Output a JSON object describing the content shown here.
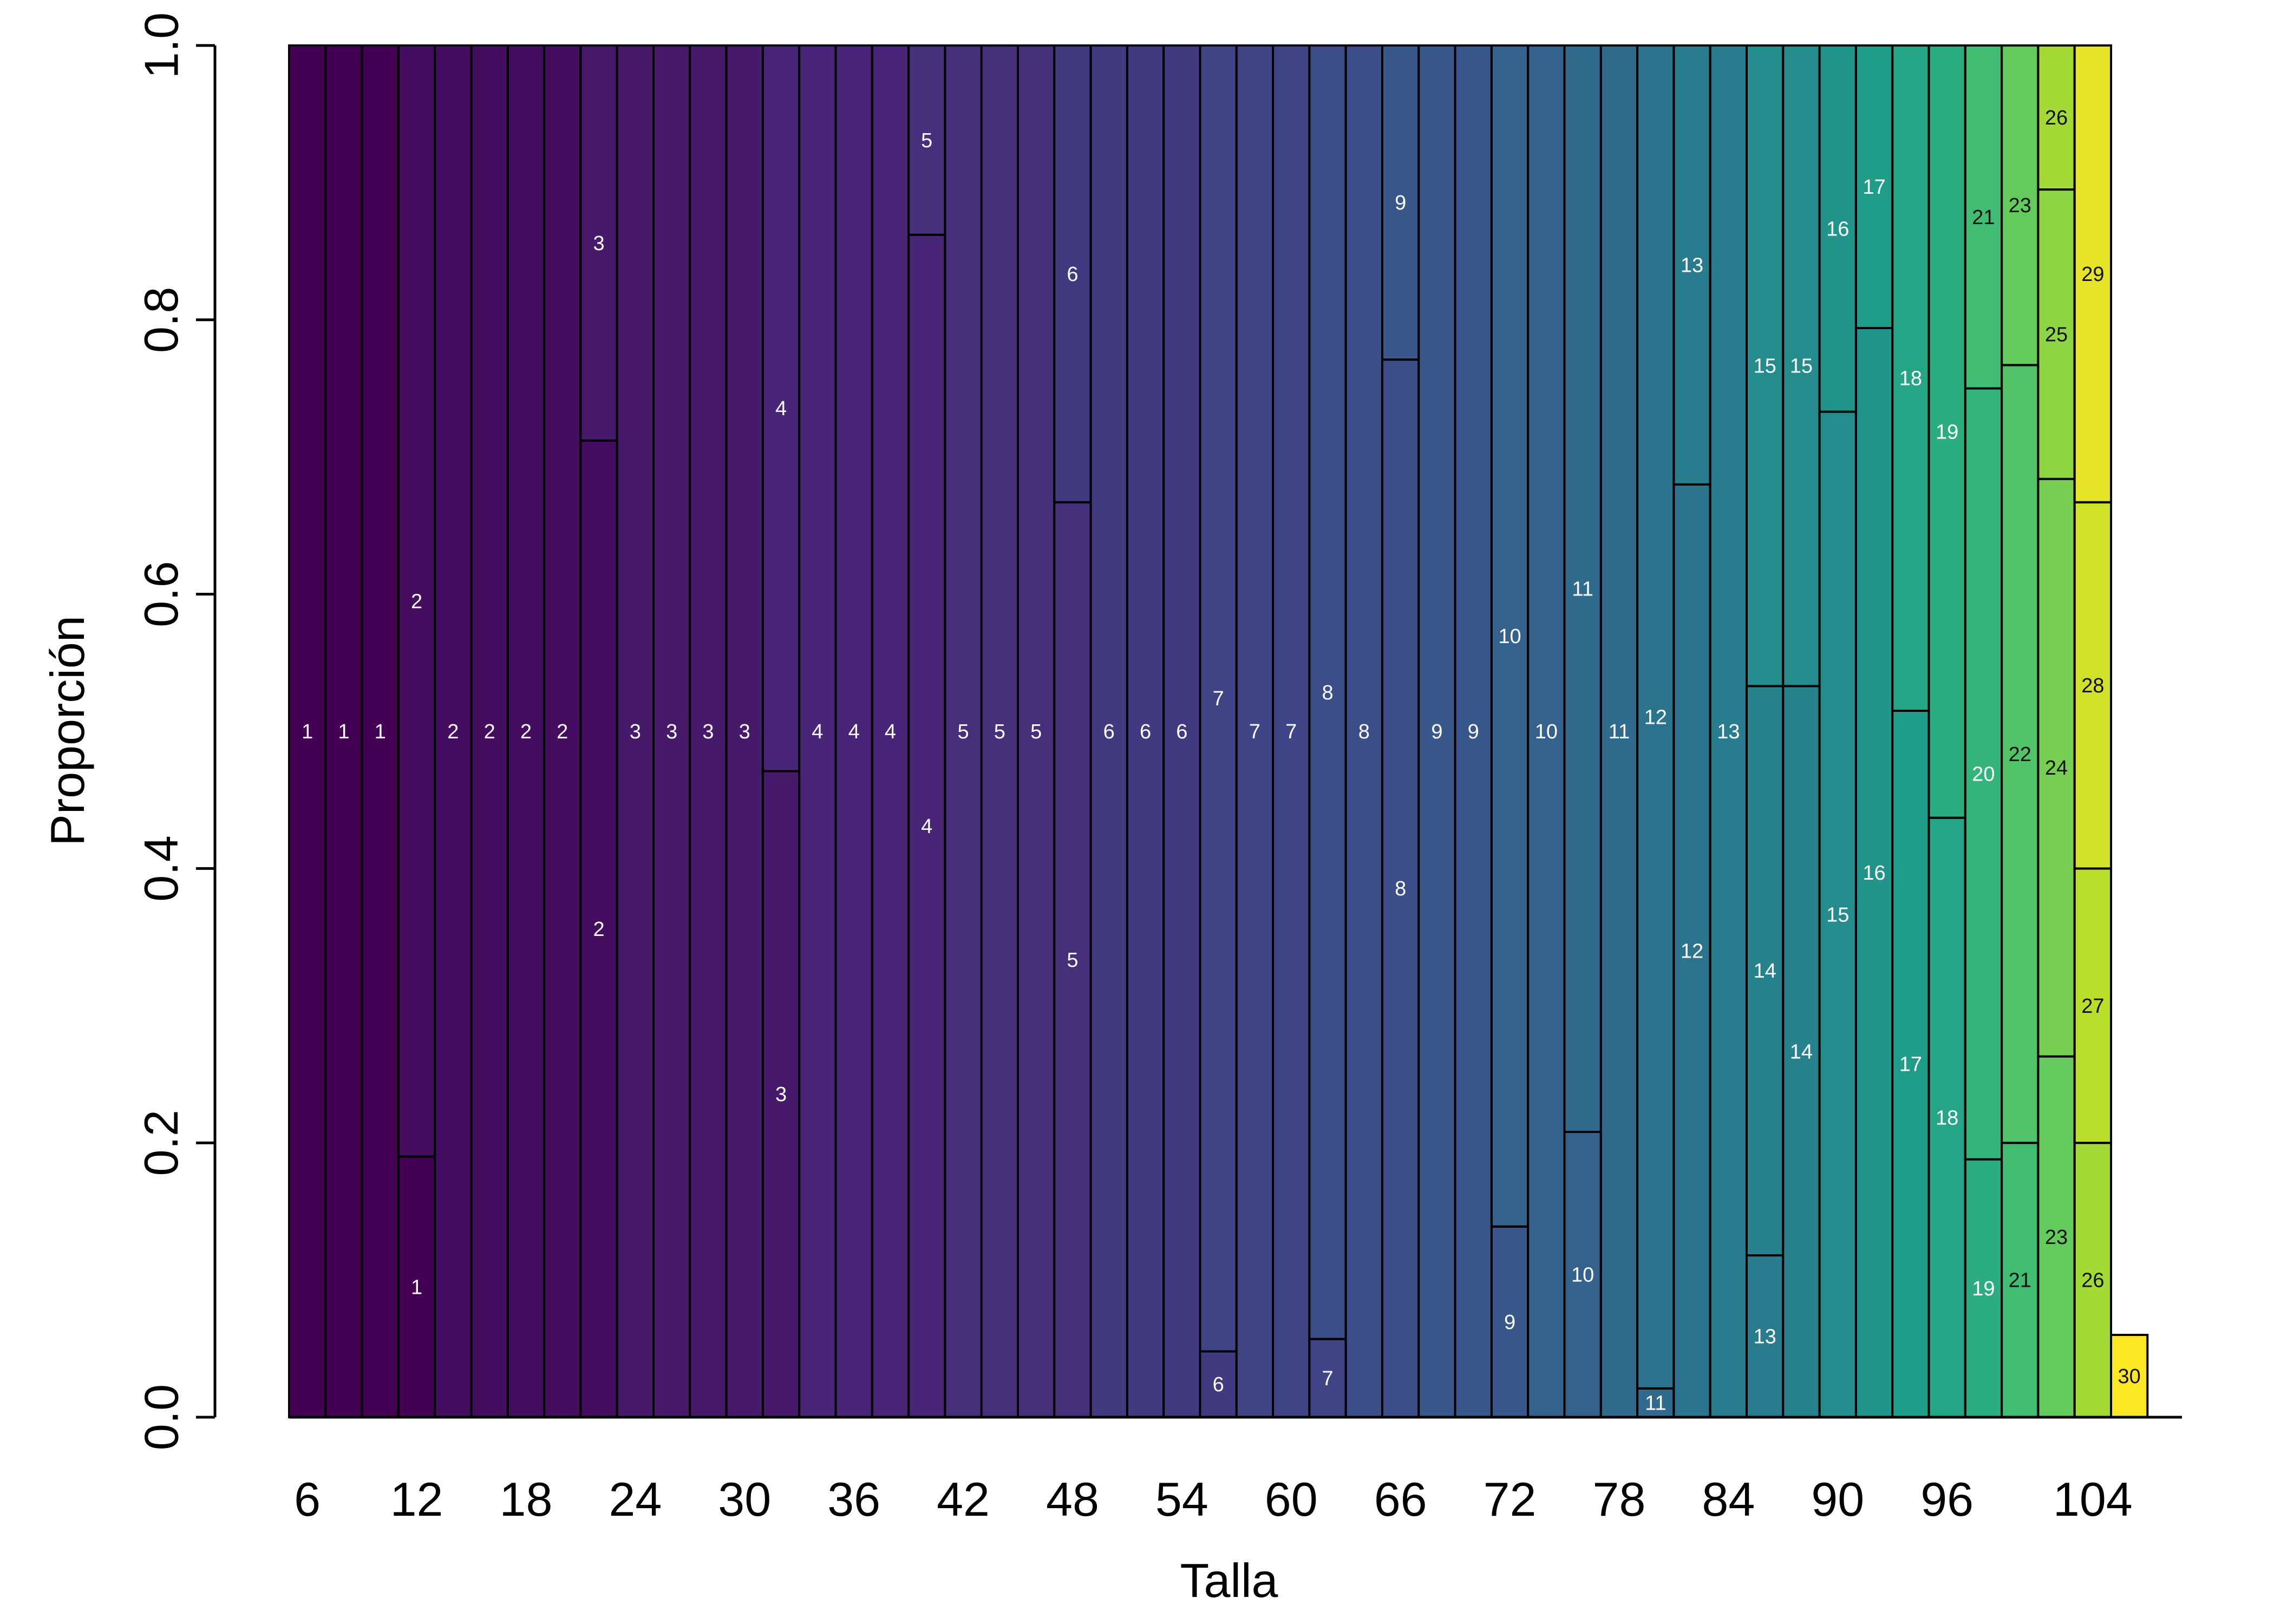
{
  "chart_data": {
    "type": "bar",
    "stacked": true,
    "xlabel": "Talla",
    "ylabel": "Proporción",
    "ylim": [
      0,
      1
    ],
    "y_ticks": [
      "0.0",
      "0.2",
      "0.4",
      "0.6",
      "0.8",
      "1.0"
    ],
    "x_ticks": [
      "6",
      "12",
      "18",
      "24",
      "30",
      "36",
      "42",
      "48",
      "54",
      "60",
      "66",
      "72",
      "78",
      "84",
      "90",
      "96",
      "104"
    ],
    "categories": [
      6,
      8,
      10,
      12,
      14,
      16,
      18,
      20,
      22,
      24,
      26,
      28,
      30,
      32,
      34,
      36,
      38,
      40,
      42,
      44,
      46,
      48,
      50,
      52,
      54,
      56,
      58,
      60,
      62,
      64,
      66,
      68,
      70,
      72,
      74,
      76,
      78,
      80,
      82,
      84,
      86,
      88,
      90,
      92,
      94,
      96,
      98,
      100,
      102,
      104,
      106
    ],
    "bars": [
      [
        {
          "age": "1",
          "p": 1.0
        }
      ],
      [
        {
          "age": "1",
          "p": 1.0
        }
      ],
      [
        {
          "age": "1",
          "p": 1.0
        }
      ],
      [
        {
          "age": "1",
          "p": 0.19
        },
        {
          "age": "2",
          "p": 0.81
        }
      ],
      [
        {
          "age": "2",
          "p": 1.0
        }
      ],
      [
        {
          "age": "2",
          "p": 1.0
        }
      ],
      [
        {
          "age": "2",
          "p": 1.0
        }
      ],
      [
        {
          "age": "2",
          "p": 1.0
        }
      ],
      [
        {
          "age": "2",
          "p": 0.712
        },
        {
          "age": "3",
          "p": 0.288
        }
      ],
      [
        {
          "age": "3",
          "p": 1.0
        }
      ],
      [
        {
          "age": "3",
          "p": 1.0
        }
      ],
      [
        {
          "age": "3",
          "p": 1.0
        }
      ],
      [
        {
          "age": "3",
          "p": 1.0
        }
      ],
      [
        {
          "age": "3",
          "p": 0.471
        },
        {
          "age": "4",
          "p": 0.529
        }
      ],
      [
        {
          "age": "4",
          "p": 1.0
        }
      ],
      [
        {
          "age": "4",
          "p": 1.0
        }
      ],
      [
        {
          "age": "4",
          "p": 1.0
        }
      ],
      [
        {
          "age": "4",
          "p": 0.862
        },
        {
          "age": "5",
          "p": 0.138
        }
      ],
      [
        {
          "age": "5",
          "p": 1.0
        }
      ],
      [
        {
          "age": "5",
          "p": 1.0
        }
      ],
      [
        {
          "age": "5",
          "p": 1.0
        }
      ],
      [
        {
          "age": "5",
          "p": 0.667
        },
        {
          "age": "6",
          "p": 0.333
        }
      ],
      [
        {
          "age": "6",
          "p": 1.0
        }
      ],
      [
        {
          "age": "6",
          "p": 1.0
        }
      ],
      [
        {
          "age": "6",
          "p": 1.0
        }
      ],
      [
        {
          "age": "6",
          "p": 0.048
        },
        {
          "age": "7",
          "p": 0.952
        }
      ],
      [
        {
          "age": "7",
          "p": 1.0
        }
      ],
      [
        {
          "age": "7",
          "p": 1.0
        }
      ],
      [
        {
          "age": "7",
          "p": 0.057
        },
        {
          "age": "8",
          "p": 0.943
        }
      ],
      [
        {
          "age": "8",
          "p": 1.0
        }
      ],
      [
        {
          "age": "8",
          "p": 0.771
        },
        {
          "age": "9",
          "p": 0.229
        }
      ],
      [
        {
          "age": "9",
          "p": 1.0
        }
      ],
      [
        {
          "age": "9",
          "p": 1.0
        }
      ],
      [
        {
          "age": "9",
          "p": 0.139
        },
        {
          "age": "10",
          "p": 0.861
        }
      ],
      [
        {
          "age": "10",
          "p": 1.0
        }
      ],
      [
        {
          "age": "10",
          "p": 0.208
        },
        {
          "age": "11",
          "p": 0.792
        }
      ],
      [
        {
          "age": "11",
          "p": 1.0
        }
      ],
      [
        {
          "age": "11",
          "p": 0.021
        },
        {
          "age": "12",
          "p": 0.979
        }
      ],
      [
        {
          "age": "12",
          "p": 0.68
        },
        {
          "age": "13",
          "p": 0.32
        }
      ],
      [
        {
          "age": "13",
          "p": 1.0
        }
      ],
      [
        {
          "age": "13",
          "p": 0.118
        },
        {
          "age": "14",
          "p": 0.415
        },
        {
          "age": "15",
          "p": 0.467
        }
      ],
      [
        {
          "age": "14",
          "p": 0.533
        },
        {
          "age": "15",
          "p": 0.467
        }
      ],
      [
        {
          "age": "15",
          "p": 0.733
        },
        {
          "age": "16",
          "p": 0.267
        }
      ],
      [
        {
          "age": "16",
          "p": 0.794
        },
        {
          "age": "17",
          "p": 0.206
        }
      ],
      [
        {
          "age": "17",
          "p": 0.515
        },
        {
          "age": "18",
          "p": 0.485
        }
      ],
      [
        {
          "age": "18",
          "p": 0.437
        },
        {
          "age": "19",
          "p": 0.563
        }
      ],
      [
        {
          "age": "19",
          "p": 0.188
        },
        {
          "age": "20",
          "p": 0.562
        },
        {
          "age": "21",
          "p": 0.25
        }
      ],
      [
        {
          "age": "21",
          "p": 0.2
        },
        {
          "age": "22",
          "p": 0.567
        },
        {
          "age": "23",
          "p": 0.233
        }
      ],
      [
        {
          "age": "23",
          "p": 0.263
        },
        {
          "age": "24",
          "p": 0.421
        },
        {
          "age": "25",
          "p": 0.211
        },
        {
          "age": "26",
          "p": 0.105
        }
      ],
      [
        {
          "age": "26",
          "p": 0.2
        },
        {
          "age": "27",
          "p": 0.2
        },
        {
          "age": "28",
          "p": 0.267
        },
        {
          "age": "29",
          "p": 0.333
        }
      ],
      [
        {
          "age": "30",
          "p": 0.06
        }
      ]
    ]
  }
}
